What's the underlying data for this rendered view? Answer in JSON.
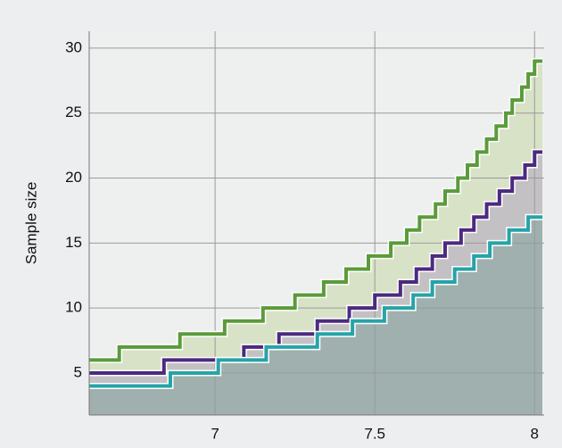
{
  "chart_data": {
    "type": "step",
    "y_label": "Sample size",
    "xlim": [
      6.606,
      8.03
    ],
    "ylim": [
      1.77,
      31.3
    ],
    "xticks": [
      7,
      7.5,
      8
    ],
    "yticks": [
      5,
      10,
      15,
      20,
      25,
      30
    ],
    "grid": true,
    "series": [
      {
        "color": "#5a9b3a",
        "fill": "#d8e2c6",
        "x": [
          6.606,
          6.7,
          6.89,
          7.03,
          7.15,
          7.25,
          7.34,
          7.41,
          7.48,
          7.55,
          7.6,
          7.64,
          7.69,
          7.72,
          7.76,
          7.79,
          7.82,
          7.85,
          7.88,
          7.91,
          7.93,
          7.96,
          7.98,
          8.0
        ],
        "values": [
          6,
          7,
          8,
          9,
          10,
          11,
          12,
          13,
          14,
          15,
          16,
          17,
          18,
          19,
          20,
          21,
          22,
          23,
          24,
          25,
          26,
          27,
          28,
          29
        ]
      },
      {
        "color": "#4b2a7f",
        "fill": "#c4c1c4",
        "x": [
          6.606,
          6.84,
          7.09,
          7.2,
          7.32,
          7.42,
          7.5,
          7.58,
          7.63,
          7.68,
          7.72,
          7.77,
          7.81,
          7.85,
          7.89,
          7.93,
          7.97,
          8.0
        ],
        "values": [
          5,
          6,
          7,
          8,
          9,
          10,
          11,
          12,
          13,
          14,
          15,
          16,
          17,
          18,
          19,
          20,
          21,
          22
        ]
      },
      {
        "color": "#26a3a8",
        "fill": "#9fb0ae",
        "x": [
          6.606,
          6.86,
          7.01,
          7.16,
          7.32,
          7.43,
          7.53,
          7.62,
          7.68,
          7.75,
          7.81,
          7.86,
          7.92,
          7.98
        ],
        "values": [
          4,
          5,
          6,
          7,
          8,
          9,
          10,
          11,
          12,
          13,
          14,
          15,
          16,
          17
        ]
      }
    ]
  }
}
